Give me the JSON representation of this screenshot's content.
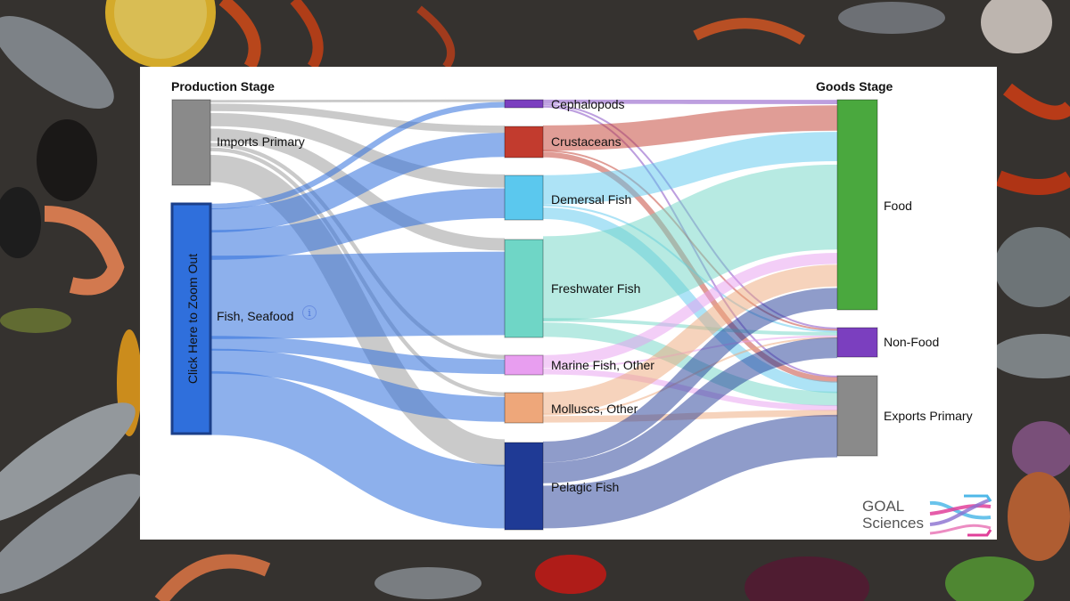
{
  "stages": {
    "production_title": "Production Stage",
    "goods_title": "Goods Stage"
  },
  "zoom_button_label": "Click Here to Zoom Out",
  "nodes": [
    {
      "id": "imports",
      "label": "Imports Primary",
      "column": "production",
      "color": "#8a8a8a"
    },
    {
      "id": "fish",
      "label": "Fish, Seafood",
      "column": "production",
      "color": "#2f6fdc"
    },
    {
      "id": "cephalopods",
      "label": "Cephalopods",
      "column": "species",
      "color": "#7b3fbf"
    },
    {
      "id": "crustaceans",
      "label": "Crustaceans",
      "column": "species",
      "color": "#c23b2e"
    },
    {
      "id": "demersal",
      "label": "Demersal Fish",
      "column": "species",
      "color": "#5bc8ee"
    },
    {
      "id": "freshwater",
      "label": "Freshwater Fish",
      "column": "species",
      "color": "#6fd6c6"
    },
    {
      "id": "marine",
      "label": "Marine Fish, Other",
      "column": "species",
      "color": "#e89ef0"
    },
    {
      "id": "molluscs",
      "label": "Molluscs, Other",
      "column": "species",
      "color": "#eea77a"
    },
    {
      "id": "pelagic",
      "label": "Pelagic Fish",
      "column": "species",
      "color": "#1f3a95"
    },
    {
      "id": "food",
      "label": "Food",
      "column": "goods",
      "color": "#4aa83e"
    },
    {
      "id": "nonfood",
      "label": "Non-Food",
      "column": "goods",
      "color": "#7b3fbf"
    },
    {
      "id": "exports",
      "label": "Exports Primary",
      "column": "goods",
      "color": "#8a8a8a"
    }
  ],
  "flows": [
    {
      "source": "imports",
      "target": "cephalopods",
      "value": 2
    },
    {
      "source": "imports",
      "target": "crustaceans",
      "value": 6
    },
    {
      "source": "imports",
      "target": "demersal",
      "value": 10
    },
    {
      "source": "imports",
      "target": "freshwater",
      "value": 10
    },
    {
      "source": "imports",
      "target": "marine",
      "value": 3
    },
    {
      "source": "imports",
      "target": "molluscs",
      "value": 3
    },
    {
      "source": "imports",
      "target": "pelagic",
      "value": 22
    },
    {
      "source": "fish",
      "target": "cephalopods",
      "value": 6
    },
    {
      "source": "fish",
      "target": "crustaceans",
      "value": 26
    },
    {
      "source": "fish",
      "target": "demersal",
      "value": 30
    },
    {
      "source": "fish",
      "target": "freshwater",
      "value": 90
    },
    {
      "source": "fish",
      "target": "marine",
      "value": 15
    },
    {
      "source": "fish",
      "target": "molluscs",
      "value": 26
    },
    {
      "source": "fish",
      "target": "pelagic",
      "value": 70
    },
    {
      "source": "cephalopods",
      "target": "food",
      "value": 4
    },
    {
      "source": "cephalopods",
      "target": "nonfood",
      "value": 2
    },
    {
      "source": "cephalopods",
      "target": "exports",
      "value": 2
    },
    {
      "source": "crustaceans",
      "target": "food",
      "value": 24
    },
    {
      "source": "crustaceans",
      "target": "nonfood",
      "value": 2
    },
    {
      "source": "crustaceans",
      "target": "exports",
      "value": 6
    },
    {
      "source": "demersal",
      "target": "food",
      "value": 26
    },
    {
      "source": "demersal",
      "target": "nonfood",
      "value": 2
    },
    {
      "source": "demersal",
      "target": "exports",
      "value": 12
    },
    {
      "source": "freshwater",
      "target": "food",
      "value": 80
    },
    {
      "source": "freshwater",
      "target": "nonfood",
      "value": 4
    },
    {
      "source": "freshwater",
      "target": "exports",
      "value": 16
    },
    {
      "source": "marine",
      "target": "food",
      "value": 10
    },
    {
      "source": "marine",
      "target": "nonfood",
      "value": 2
    },
    {
      "source": "marine",
      "target": "exports",
      "value": 6
    },
    {
      "source": "molluscs",
      "target": "food",
      "value": 20
    },
    {
      "source": "molluscs",
      "target": "nonfood",
      "value": 2
    },
    {
      "source": "molluscs",
      "target": "exports",
      "value": 7
    },
    {
      "source": "pelagic",
      "target": "food",
      "value": 20
    },
    {
      "source": "pelagic",
      "target": "nonfood",
      "value": 24
    },
    {
      "source": "pelagic",
      "target": "exports",
      "value": 48
    }
  ],
  "logo": {
    "line1": "GOAL",
    "line2": "Sciences",
    "colors": [
      "#e0409a",
      "#4fb8e8",
      "#8a6fd0"
    ]
  },
  "info_icon": "info-circle-icon"
}
